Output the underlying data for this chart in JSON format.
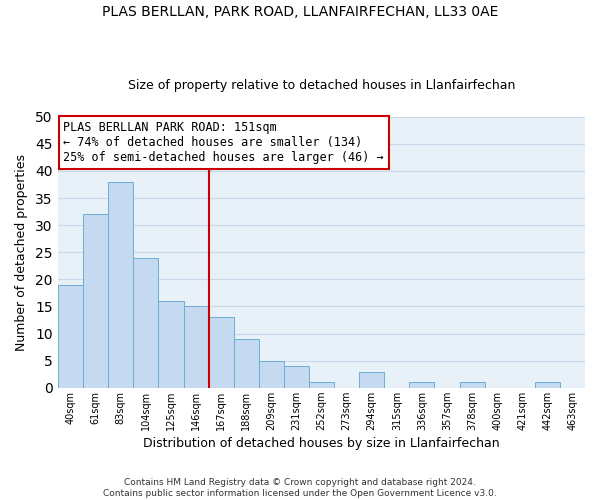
{
  "title": "PLAS BERLLAN, PARK ROAD, LLANFAIRFECHAN, LL33 0AE",
  "subtitle": "Size of property relative to detached houses in Llanfairfechan",
  "bar_labels": [
    "40sqm",
    "61sqm",
    "83sqm",
    "104sqm",
    "125sqm",
    "146sqm",
    "167sqm",
    "188sqm",
    "209sqm",
    "231sqm",
    "252sqm",
    "273sqm",
    "294sqm",
    "315sqm",
    "336sqm",
    "357sqm",
    "378sqm",
    "400sqm",
    "421sqm",
    "442sqm",
    "463sqm"
  ],
  "bar_values": [
    19,
    32,
    38,
    24,
    16,
    15,
    13,
    9,
    5,
    4,
    1,
    0,
    3,
    0,
    1,
    0,
    1,
    0,
    0,
    1,
    0
  ],
  "bar_color": "#c5d9f0",
  "bar_edge_color": "#6baed6",
  "vline_x_index": 5,
  "vline_color": "#cc0000",
  "xlabel": "Distribution of detached houses by size in Llanfairfechan",
  "ylabel": "Number of detached properties",
  "ylim": [
    0,
    50
  ],
  "yticks": [
    0,
    5,
    10,
    15,
    20,
    25,
    30,
    35,
    40,
    45,
    50
  ],
  "annotation_title": "PLAS BERLLAN PARK ROAD: 151sqm",
  "annotation_line1": "← 74% of detached houses are smaller (134)",
  "annotation_line2": "25% of semi-detached houses are larger (46) →",
  "annotation_box_color": "#ffffff",
  "annotation_box_edge": "#cc0000",
  "footer1": "Contains HM Land Registry data © Crown copyright and database right 2024.",
  "footer2": "Contains public sector information licensed under the Open Government Licence v3.0.",
  "grid_color": "#c8d8e8",
  "background_color": "#e8f0f8"
}
